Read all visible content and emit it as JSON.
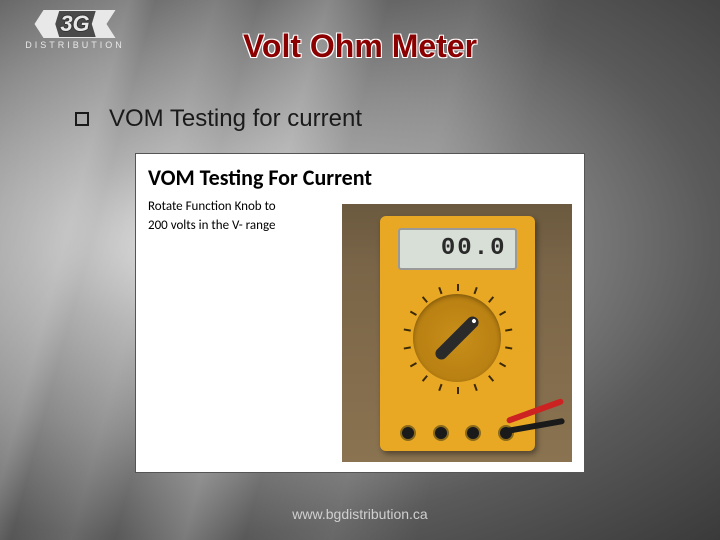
{
  "logo": {
    "mark": "3G",
    "subtext": "DISTRIBUTION"
  },
  "title": "Volt Ohm Meter",
  "bullet": "VOM Testing for current",
  "figure": {
    "title": "VOM Testing For Current",
    "instruction_line1": "Rotate Function Knob to",
    "instruction_line2": "200 volts in the V- range",
    "lcd_reading": "00.0"
  },
  "footer": "www.bgdistribution.ca"
}
